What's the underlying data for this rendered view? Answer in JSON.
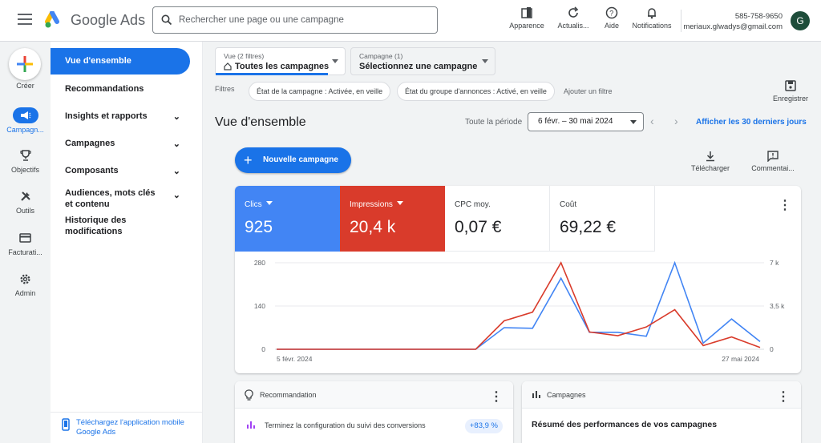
{
  "header": {
    "brand": "Google Ads",
    "search_placeholder": "Rechercher une page ou une campagne",
    "tools": [
      {
        "icon": "appearance-icon",
        "label": "Apparence"
      },
      {
        "icon": "refresh-icon",
        "label": "Actualis..."
      },
      {
        "icon": "help-icon",
        "label": "Aide"
      },
      {
        "icon": "bell-icon",
        "label": "Notifications"
      }
    ],
    "account_id": "585-758-9650",
    "account_email": "meriaux.glwadys@gmail.com",
    "avatar_letter": "G"
  },
  "rail": {
    "create_label": "Créer",
    "items": [
      {
        "icon": "megaphone-icon",
        "label": "Campagn...",
        "active": true
      },
      {
        "icon": "trophy-icon",
        "label": "Objectifs"
      },
      {
        "icon": "tools-icon",
        "label": "Outils"
      },
      {
        "icon": "credit-card-icon",
        "label": "Facturati..."
      },
      {
        "icon": "gear-icon",
        "label": "Admin"
      }
    ]
  },
  "sidenav": {
    "items": [
      {
        "label": "Vue d'ensemble",
        "active": true
      },
      {
        "label": "Recommandations"
      },
      {
        "label": "Insights et rapports"
      },
      {
        "label": "Campagnes"
      },
      {
        "label": "Composants"
      },
      {
        "label": "Audiences, mots clés et contenu"
      },
      {
        "label": "Historique des modifications"
      }
    ],
    "mobile_app": "Téléchargez l'application mobile Google Ads"
  },
  "view_selector": {
    "small": "Vue (2 filtres)",
    "value": "Toutes les campagnes"
  },
  "campaign_selector": {
    "small": "Campagne (1)",
    "value": "Sélectionnez une campagne"
  },
  "filters": {
    "label": "Filtres",
    "chips": [
      "État de la campagne : Activée, en veille",
      "État du groupe d'annonces : Activé, en veille"
    ],
    "add": "Ajouter un filtre",
    "save": "Enregistrer"
  },
  "page": {
    "title": "Vue d'ensemble",
    "period_label": "Toute la période",
    "date_range": "6 févr. – 30 mai 2024",
    "last30": "Afficher les 30 derniers jours",
    "new_campaign": "Nouvelle campagne",
    "download": "Télécharger",
    "comments": "Commentai..."
  },
  "metrics": [
    {
      "label": "Clics",
      "value": "925",
      "color": "#4285f4"
    },
    {
      "label": "Impressions",
      "value": "20,4 k",
      "color": "#d93b2b"
    },
    {
      "label": "CPC moy.",
      "value": "0,07 €"
    },
    {
      "label": "Coût",
      "value": "69,22 €"
    }
  ],
  "chart_data": {
    "type": "line",
    "x_start": "5 févr. 2024",
    "x_end": "27 mai 2024",
    "y_left_ticks": [
      "280",
      "140",
      "0"
    ],
    "y_right_ticks": [
      "7 k",
      "3,5 k",
      "0"
    ],
    "ylim_left": [
      0,
      280
    ],
    "ylim_right": [
      0,
      7000
    ],
    "series": [
      {
        "name": "Clics",
        "axis": "left",
        "color": "#4285f4",
        "values": [
          0,
          0,
          0,
          0,
          0,
          0,
          0,
          0,
          70,
          68,
          230,
          55,
          55,
          42,
          280,
          20,
          98,
          25
        ]
      },
      {
        "name": "Impressions",
        "axis": "right",
        "color": "#d93b2b",
        "values": [
          0,
          0,
          0,
          0,
          0,
          0,
          0,
          0,
          2300,
          3000,
          7000,
          1400,
          1100,
          1800,
          3200,
          300,
          1000,
          150
        ]
      }
    ]
  },
  "recommendation": {
    "title": "Recommandation",
    "row": "Terminez la configuration du suivi des conversions",
    "pct": "+83,9 %"
  },
  "campaigns_card": {
    "title": "Campagnes",
    "subtitle": "Résumé des performances de vos campagnes"
  }
}
